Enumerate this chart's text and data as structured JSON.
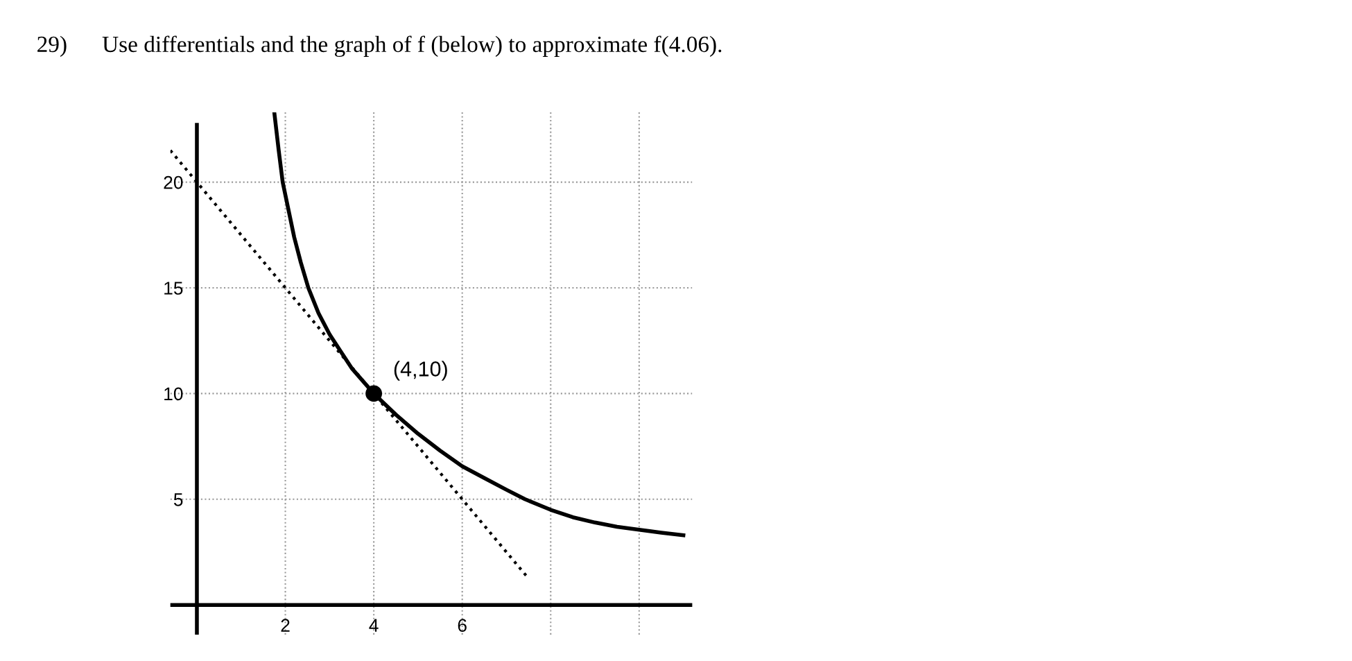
{
  "chart_data": {
    "type": "line",
    "title": "29)      Use differentials and the graph of f (below) to approximate f(4.06).",
    "series": [
      {
        "color": "#000000",
        "line_style": "solid",
        "marker": "none",
        "x": [
          1.75,
          1.85,
          1.94,
          2.2,
          2.35,
          2.52,
          2.75,
          3.0,
          3.25,
          3.5,
          3.75,
          4.0,
          4.5,
          5.0,
          5.5,
          6.0,
          6.5,
          7.0,
          7.42,
          8.0,
          8.5,
          9.0,
          9.5,
          10.0,
          10.5,
          11.0
        ],
        "values": [
          23.3,
          21.5,
          20,
          17.4,
          16.2,
          15,
          13.8,
          12.8,
          12.0,
          11.2,
          10.6,
          10,
          9.0,
          8.1,
          7.3,
          6.56,
          6.0,
          5.45,
          5,
          4.5,
          4.15,
          3.9,
          3.7,
          3.56,
          3.42,
          3.3
        ]
      },
      {
        "color": "#000000",
        "line_style": "dotted",
        "marker": "none",
        "x": [
          -0.6,
          7.46
        ],
        "values": [
          21.5,
          1.35
        ]
      },
      {
        "type": "scatter",
        "color": "#000000",
        "marker": "circle",
        "x": [
          4
        ],
        "values": [
          10
        ]
      }
    ],
    "annotations": [
      {
        "text": "(4,10)",
        "x": 4,
        "y": 10
      }
    ],
    "xlim": [
      -0.6,
      11.2
    ],
    "ylim": [
      -1.4,
      23.3
    ],
    "xticks": [
      2,
      4,
      6,
      {
        "value": 8,
        "label": null
      },
      {
        "value": 10,
        "label": null
      }
    ],
    "yticks": [
      5,
      10,
      15,
      20
    ],
    "grid": true
  }
}
